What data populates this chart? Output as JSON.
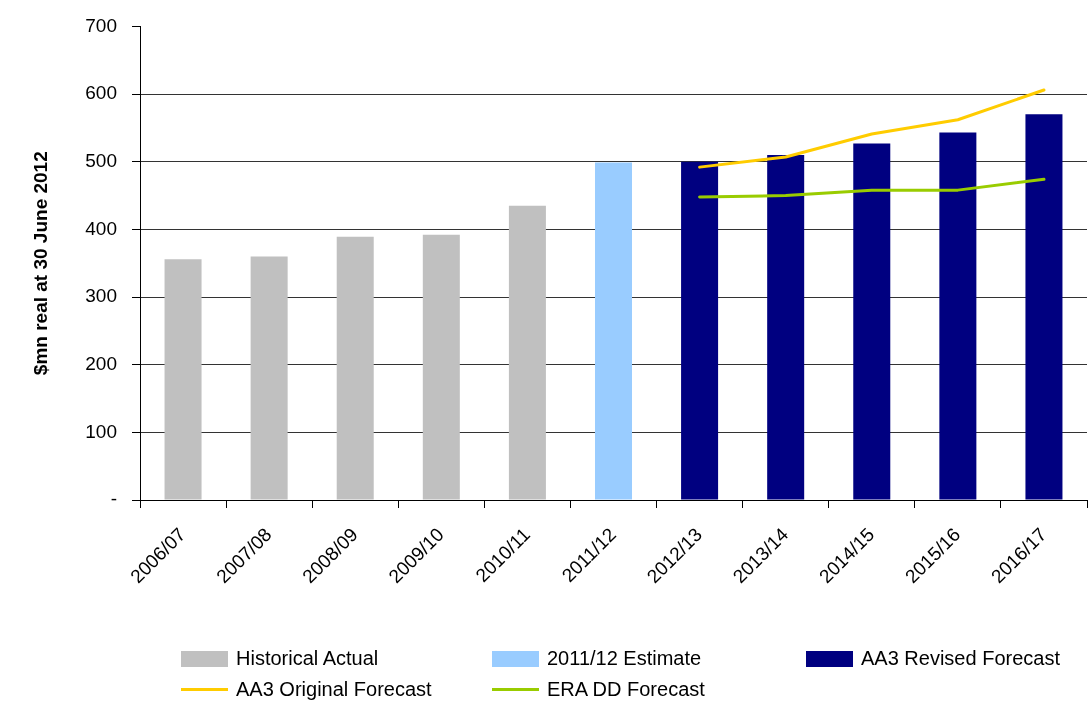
{
  "chart_data": {
    "type": "bar",
    "ylabel": "$mn real at 30 June 2012",
    "categories": [
      "2006/07",
      "2007/08",
      "2008/09",
      "2009/10",
      "2010/11",
      "2011/12",
      "2012/13",
      "2013/14",
      "2014/15",
      "2015/16",
      "2016/17"
    ],
    "series": [
      {
        "name": "Historical Actual",
        "color": "#c0c0c0",
        "values": [
          356,
          360,
          389,
          392,
          435,
          null,
          null,
          null,
          null,
          null,
          null
        ]
      },
      {
        "name": "2011/12 Estimate",
        "color": "#99ccff",
        "values": [
          null,
          null,
          null,
          null,
          null,
          499,
          null,
          null,
          null,
          null,
          null
        ]
      },
      {
        "name": "AA3 Revised Forecast",
        "color": "#000080",
        "values": [
          null,
          null,
          null,
          null,
          null,
          null,
          500,
          510,
          527,
          543,
          570
        ]
      },
      {
        "name": "AA3 Original Forecast",
        "type": "line",
        "color": "#ffcc00",
        "values": [
          null,
          null,
          null,
          null,
          null,
          null,
          492,
          507,
          541,
          562,
          606
        ]
      },
      {
        "name": "ERA DD Forecast",
        "type": "line",
        "color": "#99cc00",
        "values": [
          null,
          null,
          null,
          null,
          null,
          null,
          448,
          450,
          458,
          458,
          474
        ]
      }
    ],
    "ylim": [
      0,
      700
    ],
    "yticks": [
      {
        "value": 0,
        "label": "-"
      },
      100,
      200,
      300,
      400,
      500,
      600,
      700
    ],
    "grid": "y",
    "legend": "bottom"
  }
}
